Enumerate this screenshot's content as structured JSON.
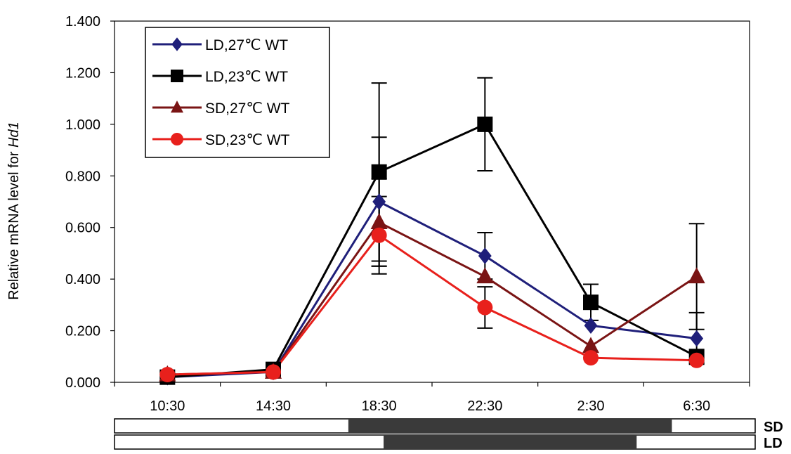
{
  "chart_data": {
    "type": "line",
    "ylabel_prefix": "Relative mRNA level for ",
    "ylabel_gene": "Hd1",
    "xlabel": "",
    "ylim": [
      0,
      1.4
    ],
    "y_ticks": [
      "0.000",
      "0.200",
      "0.400",
      "0.600",
      "0.800",
      "1.000",
      "1.200",
      "1.400"
    ],
    "categories": [
      "10:30",
      "14:30",
      "18:30",
      "22:30",
      "2:30",
      "6:30"
    ],
    "legend_position": "top-left",
    "grid": false,
    "series": [
      {
        "name": "LD,27℃ WT",
        "color": "#1f1f7a",
        "marker": "diamond",
        "values": [
          0.02,
          0.04,
          0.7,
          0.49,
          0.22,
          0.17
        ],
        "errors": [
          0.0,
          0.0,
          0.0,
          0.09,
          0.0,
          0.1
        ]
      },
      {
        "name": "LD,23℃ WT",
        "color": "#000000",
        "marker": "square",
        "values": [
          0.02,
          0.05,
          0.815,
          1.0,
          0.31,
          0.1
        ],
        "errors": [
          0.0,
          0.0,
          0.345,
          0.18,
          0.07,
          0.0
        ]
      },
      {
        "name": "SD,27℃ WT",
        "color": "#7a1414",
        "marker": "triangle",
        "values": [
          0.03,
          0.04,
          0.62,
          0.41,
          0.14,
          0.41
        ],
        "errors": [
          0.0,
          0.0,
          0.0,
          0.0,
          0.0,
          0.0
        ]
      },
      {
        "name": "SD,23℃ WT",
        "color": "#e8201c",
        "marker": "circle",
        "values": [
          0.03,
          0.04,
          0.57,
          0.29,
          0.095,
          0.085
        ],
        "errors": [
          0.0,
          0.0,
          0.15,
          0.08,
          0.0,
          0.0
        ]
      }
    ],
    "extra_error_caps": [
      {
        "category": "18:30",
        "value": 0.7,
        "error": 0.25
      },
      {
        "category": "18:30",
        "value": 0.62,
        "error": 0.17
      },
      {
        "category": "6:30",
        "value": 0.41,
        "error": 0.205
      }
    ],
    "photoperiod_bars": [
      {
        "label": "SD",
        "dark_start": 0.365,
        "dark_end": 0.87
      },
      {
        "label": "LD",
        "dark_start": 0.42,
        "dark_end": 0.815
      }
    ]
  }
}
